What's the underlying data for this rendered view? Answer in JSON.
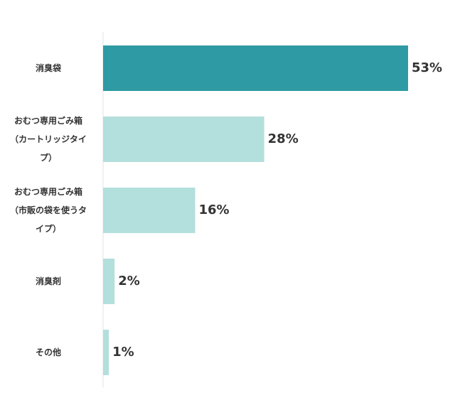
{
  "chart_data": {
    "type": "bar",
    "orientation": "horizontal",
    "categories": [
      "消臭袋",
      "おむつ専用ごみ箱\n（カートリッジタイ\nプ）",
      "おむつ専用ごみ箱\n（市販の袋を使うタ\nイプ）",
      "消臭剤",
      "その他"
    ],
    "values": [
      53,
      28,
      16,
      2,
      1
    ],
    "value_labels": [
      "53%",
      "28%",
      "16%",
      "2%",
      "1%"
    ],
    "unit": "%",
    "xlim": [
      0,
      53
    ],
    "title": "",
    "xlabel": "",
    "ylabel": "",
    "grid": false,
    "legend": "none",
    "colors": {
      "highlight": "#2e9aa3",
      "default": "#b3dfdc",
      "axis": "#e3e3e3",
      "text": "#333333"
    },
    "highlight_index": 0
  }
}
